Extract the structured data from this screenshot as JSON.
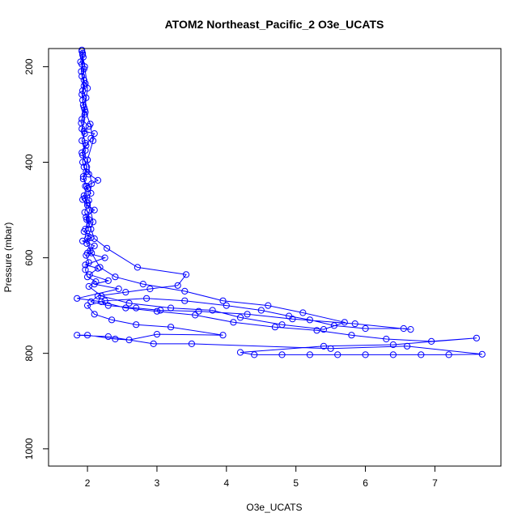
{
  "chart_data": {
    "type": "line",
    "title": "ATOM2 Northeast_Pacific_2 O3e_UCATS",
    "xlabel": "O3e_UCATS",
    "ylabel": "Pressure (mbar)",
    "xlim": [
      1.44,
      7.95
    ],
    "ylim": [
      1036,
      162
    ],
    "y_inverted": true,
    "x_ticks": [
      2,
      3,
      4,
      5,
      6,
      7
    ],
    "y_ticks": [
      200,
      400,
      600,
      800,
      1000
    ],
    "x_tick_labels": [
      "2",
      "3",
      "4",
      "5",
      "6",
      "7"
    ],
    "y_tick_labels": [
      "200",
      "400",
      "600",
      "800",
      "1000"
    ],
    "grid": false,
    "legend": "none",
    "marker": "open-circle",
    "series": [
      {
        "color": "#0000ff",
        "points": [
          [
            1.92,
            165
          ],
          [
            1.93,
            175
          ],
          [
            1.9,
            190
          ],
          [
            1.95,
            205
          ],
          [
            1.92,
            220
          ],
          [
            1.97,
            235
          ],
          [
            1.93,
            250
          ],
          [
            1.98,
            265
          ],
          [
            1.94,
            280
          ],
          [
            1.97,
            295
          ],
          [
            1.92,
            310
          ],
          [
            2.02,
            325
          ],
          [
            1.95,
            335
          ],
          [
            2.1,
            340
          ],
          [
            2.05,
            350
          ],
          [
            1.98,
            365
          ],
          [
            1.92,
            380
          ],
          [
            2.0,
            395
          ],
          [
            1.95,
            410
          ],
          [
            2.02,
            425
          ],
          [
            2.15,
            438
          ],
          [
            1.97,
            450
          ],
          [
            2.05,
            465
          ],
          [
            1.93,
            478
          ],
          [
            2.0,
            490
          ],
          [
            2.1,
            500
          ],
          [
            1.98,
            515
          ],
          [
            2.03,
            530
          ],
          [
            1.95,
            545
          ],
          [
            2.05,
            558
          ],
          [
            1.93,
            565
          ],
          [
            2.1,
            575
          ],
          [
            2.0,
            590
          ],
          [
            2.25,
            600
          ],
          [
            1.97,
            615
          ],
          [
            2.15,
            622
          ],
          [
            2.03,
            635
          ],
          [
            2.3,
            648
          ],
          [
            2.1,
            655
          ],
          [
            2.45,
            665
          ],
          [
            1.85,
            685
          ],
          [
            2.2,
            692
          ],
          [
            2.55,
            705
          ],
          [
            3.0,
            712
          ],
          [
            3.55,
            720
          ],
          [
            4.1,
            735
          ],
          [
            4.7,
            745
          ],
          [
            5.3,
            752
          ],
          [
            5.8,
            762
          ],
          [
            6.3,
            770
          ],
          [
            6.95,
            775
          ],
          [
            7.6,
            768
          ],
          [
            6.4,
            782
          ],
          [
            5.4,
            785
          ],
          [
            4.2,
            798
          ],
          [
            4.4,
            803
          ],
          [
            4.8,
            803
          ],
          [
            5.2,
            803
          ],
          [
            5.6,
            803
          ],
          [
            6.0,
            803
          ],
          [
            6.4,
            803
          ],
          [
            6.8,
            803
          ],
          [
            7.2,
            803
          ],
          [
            7.68,
            802
          ],
          [
            6.6,
            785
          ],
          [
            5.5,
            790
          ],
          [
            3.5,
            780
          ],
          [
            2.95,
            780
          ],
          [
            2.3,
            765
          ],
          [
            1.85,
            762
          ],
          [
            2.0,
            762
          ],
          [
            2.4,
            770
          ],
          [
            2.6,
            772
          ],
          [
            3.0,
            760
          ],
          [
            3.95,
            762
          ],
          [
            3.2,
            745
          ],
          [
            2.7,
            740
          ],
          [
            2.35,
            730
          ],
          [
            2.1,
            718
          ],
          [
            2.0,
            700
          ],
          [
            2.25,
            690
          ],
          [
            2.85,
            685
          ],
          [
            3.4,
            690
          ],
          [
            4.0,
            700
          ],
          [
            4.5,
            710
          ],
          [
            4.9,
            722
          ],
          [
            5.2,
            730
          ],
          [
            5.55,
            742
          ],
          [
            6.0,
            748
          ],
          [
            6.55,
            748
          ],
          [
            6.65,
            750
          ],
          [
            5.85,
            738
          ],
          [
            4.95,
            728
          ],
          [
            4.3,
            718
          ],
          [
            3.6,
            712
          ],
          [
            3.05,
            710
          ],
          [
            2.7,
            705
          ],
          [
            2.3,
            700
          ],
          [
            2.05,
            692
          ],
          [
            2.15,
            680
          ],
          [
            2.55,
            672
          ],
          [
            2.9,
            665
          ],
          [
            3.3,
            658
          ],
          [
            3.42,
            635
          ],
          [
            2.72,
            620
          ],
          [
            2.28,
            580
          ],
          [
            2.1,
            560
          ],
          [
            2.05,
            540
          ],
          [
            1.99,
            520
          ],
          [
            2.03,
            500
          ],
          [
            1.96,
            475
          ],
          [
            2.0,
            455
          ],
          [
            1.94,
            430
          ],
          [
            1.99,
            410
          ],
          [
            1.93,
            385
          ],
          [
            1.97,
            360
          ],
          [
            1.92,
            330
          ],
          [
            1.96,
            300
          ],
          [
            1.93,
            270
          ],
          [
            1.95,
            240
          ],
          [
            1.91,
            210
          ],
          [
            1.94,
            180
          ],
          [
            1.92,
            168
          ],
          [
            1.96,
            200
          ],
          [
            2.0,
            245
          ],
          [
            1.96,
            290
          ],
          [
            2.04,
            320
          ],
          [
            2.08,
            355
          ],
          [
            2.0,
            395
          ],
          [
            2.06,
            445
          ],
          [
            2.02,
            480
          ],
          [
            2.08,
            525
          ],
          [
            2.0,
            560
          ],
          [
            2.06,
            590
          ],
          [
            2.18,
            620
          ],
          [
            2.4,
            640
          ],
          [
            2.8,
            655
          ],
          [
            3.4,
            670
          ],
          [
            3.95,
            690
          ],
          [
            4.6,
            700
          ],
          [
            5.1,
            715
          ],
          [
            5.7,
            735
          ],
          [
            5.4,
            750
          ],
          [
            4.8,
            740
          ],
          [
            4.2,
            725
          ],
          [
            3.8,
            710
          ],
          [
            3.2,
            705
          ],
          [
            2.6,
            695
          ],
          [
            2.2,
            680
          ],
          [
            2.02,
            660
          ],
          [
            2.12,
            650
          ],
          [
            2.0,
            640
          ],
          [
            1.97,
            625
          ],
          [
            2.02,
            610
          ],
          [
            1.98,
            595
          ],
          [
            2.04,
            585
          ],
          [
            1.99,
            570
          ],
          [
            2.01,
            555
          ],
          [
            1.97,
            540
          ],
          [
            2.02,
            520
          ],
          [
            1.96,
            505
          ],
          [
            2.0,
            485
          ],
          [
            1.95,
            470
          ],
          [
            1.99,
            450
          ],
          [
            1.94,
            435
          ],
          [
            1.98,
            420
          ],
          [
            1.93,
            400
          ],
          [
            1.97,
            375
          ],
          [
            1.92,
            355
          ],
          [
            1.96,
            340
          ],
          [
            1.91,
            318
          ],
          [
            1.95,
            285
          ],
          [
            1.92,
            258
          ],
          [
            1.95,
            228
          ],
          [
            1.92,
            195
          ],
          [
            1.93,
            172
          ]
        ]
      }
    ]
  }
}
